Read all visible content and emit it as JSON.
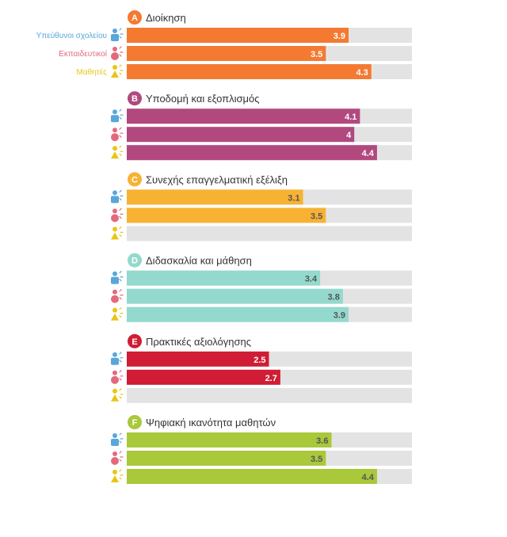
{
  "chart_data": {
    "type": "bar",
    "orientation": "horizontal",
    "xlim": [
      0,
      5
    ],
    "roles": [
      {
        "name": "Υπεύθυνοι σχολείου",
        "color": "#5aa6da"
      },
      {
        "name": "Εκπαιδευτικοί",
        "color": "#e36a7c"
      },
      {
        "name": "Μαθητές",
        "color": "#e9c515"
      }
    ],
    "sections": [
      {
        "letter": "A",
        "title": "Διοίκηση",
        "color": "#f47a32",
        "value_text_color": "#ffffff",
        "values": [
          3.9,
          3.5,
          4.3
        ]
      },
      {
        "letter": "B",
        "title": "Υποδομή και εξοπλισμός",
        "color": "#b1497f",
        "value_text_color": "#ffffff",
        "values": [
          4.1,
          4,
          4.4
        ]
      },
      {
        "letter": "C",
        "title": "Συνεχής επαγγελματική εξέλιξη",
        "color": "#f7b233",
        "value_text_color": "#555555",
        "values": [
          3.1,
          3.5,
          null
        ]
      },
      {
        "letter": "D",
        "title": "Διδασκαλία και μάθηση",
        "color": "#94d9ce",
        "value_text_color": "#555555",
        "values": [
          3.4,
          3.8,
          3.9
        ]
      },
      {
        "letter": "E",
        "title": "Πρακτικές αξιολόγησης",
        "color": "#d01c34",
        "value_text_color": "#ffffff",
        "values": [
          2.5,
          2.7,
          null
        ]
      },
      {
        "letter": "F",
        "title": "Ψηφιακή ικανότητα μαθητών",
        "color": "#a9c83a",
        "value_text_color": "#555555",
        "values": [
          3.6,
          3.5,
          4.4
        ]
      }
    ],
    "track_color": "#e3e3e3"
  }
}
